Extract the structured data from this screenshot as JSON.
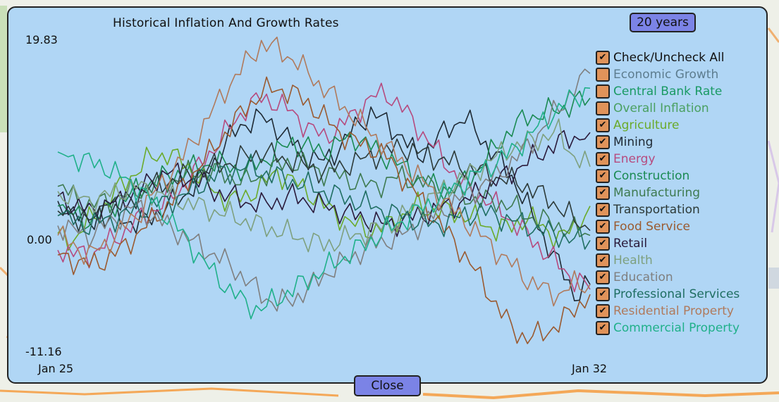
{
  "colors": {
    "panel": "#b0d6f5",
    "button": "#7b83e6",
    "checkbox": "#e0935a"
  },
  "buttons": {
    "range_label": "20 years",
    "close_label": "Close"
  },
  "legend": {
    "toggle_all": {
      "label": "Check/Uncheck All",
      "checked": true,
      "color": "#111111"
    },
    "items": [
      {
        "label": "Economic Growth",
        "checked": false,
        "color": "#5d7d8f"
      },
      {
        "label": "Central Bank Rate",
        "checked": false,
        "color": "#1a9a64"
      },
      {
        "label": "Overall Inflation",
        "checked": false,
        "color": "#4aa061"
      },
      {
        "label": "Agriculture",
        "checked": true,
        "color": "#6aaa2a"
      },
      {
        "label": "Mining",
        "checked": true,
        "color": "#1f2a34"
      },
      {
        "label": "Energy",
        "checked": true,
        "color": "#b64a7e"
      },
      {
        "label": "Construction",
        "checked": true,
        "color": "#1a8a52"
      },
      {
        "label": "Manufacturing",
        "checked": true,
        "color": "#3e7a50"
      },
      {
        "label": "Transportation",
        "checked": true,
        "color": "#2d3a38"
      },
      {
        "label": "Food Service",
        "checked": true,
        "color": "#9a5a30"
      },
      {
        "label": "Retail",
        "checked": true,
        "color": "#2a1a3a"
      },
      {
        "label": "Health",
        "checked": true,
        "color": "#7ea07e"
      },
      {
        "label": "Education",
        "checked": true,
        "color": "#7f7f7f"
      },
      {
        "label": "Professional Services",
        "checked": true,
        "color": "#1f6e62"
      },
      {
        "label": "Residential Property",
        "checked": true,
        "color": "#b07a5c"
      },
      {
        "label": "Commercial Property",
        "checked": true,
        "color": "#20b08a"
      }
    ]
  },
  "chart_data": {
    "type": "line",
    "title": "Historical Inflation And Growth Rates",
    "ylim": [
      -11.16,
      19.83
    ],
    "y_tick_labels": [
      "19.83",
      "0.00",
      "-11.16"
    ],
    "x_tick_labels": [
      "Jan 25",
      "Jan 32"
    ],
    "x_range": [
      "Jan 25",
      "Jan 32"
    ],
    "legend_position": "right",
    "grid": false,
    "series": [
      {
        "name": "Agriculture",
        "color": "#6aaa2a",
        "values": [
          0.2,
          -0.5,
          1.5,
          3.0,
          5.0,
          6.5,
          8.0,
          8.3,
          7.5,
          6.0,
          4.5,
          3.5,
          4.0,
          5.0,
          6.5,
          5.5,
          4.5,
          3.0,
          2.0,
          1.0,
          0.5,
          1.0,
          2.0,
          3.0,
          2.5,
          2.5,
          2.0,
          1.5,
          0.5,
          1.0,
          1.8,
          1.0,
          -0.5,
          1.0,
          3.0
        ]
      },
      {
        "name": "Mining",
        "color": "#1f2a34",
        "values": [
          3.5,
          2.5,
          1.0,
          3.5,
          2.0,
          1.0,
          2.0,
          3.0,
          4.0,
          5.5,
          7.5,
          10.0,
          11.5,
          12.0,
          11.0,
          9.5,
          8.0,
          7.5,
          9.0,
          11.0,
          12.5,
          11.5,
          10.0,
          8.0,
          9.5,
          11.0,
          12.0,
          10.0,
          8.0,
          6.0,
          3.0,
          0.0,
          -3.0,
          -6.0,
          -5.0
        ]
      },
      {
        "name": "Energy",
        "color": "#b64a7e",
        "values": [
          -1.5,
          -1.8,
          -2.0,
          -1.0,
          0.0,
          1.5,
          2.5,
          3.5,
          5.0,
          7.0,
          9.0,
          11.0,
          13.0,
          14.0,
          13.5,
          12.5,
          11.0,
          10.0,
          11.0,
          12.5,
          14.0,
          14.5,
          13.0,
          11.0,
          9.0,
          7.0,
          5.0,
          4.0,
          3.0,
          1.5,
          0.0,
          -1.5,
          -3.0,
          -4.5,
          -5.5
        ]
      },
      {
        "name": "Construction",
        "color": "#1a8a52",
        "values": [
          3.0,
          2.0,
          1.5,
          2.5,
          3.5,
          4.5,
          5.5,
          6.0,
          6.5,
          7.0,
          7.5,
          7.0,
          6.5,
          7.5,
          8.5,
          9.5,
          9.0,
          8.5,
          9.5,
          10.0,
          9.0,
          8.0,
          7.0,
          6.0,
          5.0,
          4.5,
          5.5,
          7.0,
          9.0,
          11.0,
          12.0,
          12.5,
          12.8,
          13.5,
          14.0
        ]
      },
      {
        "name": "Manufacturing",
        "color": "#3e7a50",
        "values": [
          5.0,
          4.0,
          3.0,
          3.5,
          4.0,
          4.5,
          5.0,
          5.5,
          6.0,
          6.5,
          6.5,
          6.0,
          5.5,
          6.0,
          7.0,
          7.5,
          7.0,
          6.5,
          6.0,
          5.5,
          5.0,
          5.5,
          6.0,
          5.5,
          5.0,
          4.5,
          4.0,
          3.5,
          3.5,
          3.0,
          2.0,
          1.5,
          1.0,
          0.5,
          0.0
        ]
      },
      {
        "name": "Transportation",
        "color": "#2d3a38",
        "values": [
          2.5,
          2.0,
          1.5,
          2.0,
          3.0,
          4.0,
          5.0,
          5.5,
          6.0,
          6.5,
          7.0,
          7.5,
          8.0,
          8.5,
          8.0,
          7.5,
          7.0,
          6.5,
          7.0,
          7.5,
          8.0,
          8.5,
          9.0,
          8.5,
          8.0,
          7.5,
          7.0,
          6.5,
          6.0,
          5.5,
          5.0,
          4.0,
          3.0,
          1.5,
          0.5
        ]
      },
      {
        "name": "Food Service",
        "color": "#9a5a30",
        "values": [
          -2.0,
          -2.5,
          -3.0,
          -2.5,
          -1.5,
          0.0,
          1.5,
          3.0,
          5.0,
          7.0,
          9.0,
          11.0,
          13.0,
          14.5,
          15.0,
          14.5,
          13.5,
          12.0,
          10.5,
          9.5,
          9.0,
          8.0,
          6.0,
          4.0,
          2.0,
          0.0,
          -2.0,
          -4.5,
          -7.0,
          -9.5,
          -10.5,
          -10.0,
          -9.0,
          -7.5,
          -6.0
        ]
      },
      {
        "name": "Retail",
        "color": "#2a1a3a",
        "values": [
          4.0,
          3.0,
          2.5,
          3.0,
          3.5,
          4.5,
          5.5,
          6.5,
          6.0,
          5.5,
          4.5,
          4.0,
          3.5,
          3.0,
          3.5,
          4.0,
          3.5,
          3.0,
          2.5,
          2.0,
          1.5,
          1.0,
          1.5,
          2.0,
          2.5,
          3.0,
          3.5,
          4.5,
          5.5,
          6.5,
          7.5,
          8.5,
          9.5,
          10.0,
          10.5
        ]
      },
      {
        "name": "Health",
        "color": "#7ea07e",
        "values": [
          4.5,
          4.0,
          3.5,
          4.0,
          4.5,
          5.0,
          4.5,
          4.0,
          3.5,
          3.0,
          2.5,
          2.0,
          1.5,
          1.0,
          0.5,
          0.0,
          -0.5,
          -1.0,
          -0.5,
          0.0,
          0.5,
          1.0,
          2.0,
          3.0,
          4.0,
          5.0,
          6.0,
          7.0,
          8.0,
          9.0,
          9.5,
          10.0,
          10.5,
          8.0,
          7.0
        ]
      },
      {
        "name": "Education",
        "color": "#7f7f7f",
        "values": [
          1.0,
          0.5,
          0.0,
          1.0,
          2.0,
          3.0,
          2.0,
          1.0,
          0.0,
          -1.0,
          -2.0,
          -3.0,
          -4.5,
          -6.0,
          -7.0,
          -6.5,
          -5.5,
          -4.0,
          -3.0,
          -2.0,
          -1.0,
          -0.5,
          0.0,
          1.0,
          2.0,
          3.0,
          4.0,
          5.0,
          6.0,
          7.5,
          9.0,
          11.0,
          13.0,
          15.0,
          16.5
        ]
      },
      {
        "name": "Professional Services",
        "color": "#1f6e62",
        "values": [
          2.0,
          1.5,
          1.0,
          1.5,
          2.0,
          2.5,
          3.0,
          3.5,
          4.0,
          5.0,
          6.0,
          6.5,
          7.0,
          6.5,
          6.0,
          5.5,
          5.0,
          4.5,
          4.0,
          3.5,
          3.0,
          2.5,
          2.0,
          1.5,
          1.0,
          1.5,
          2.0,
          2.5,
          2.0,
          1.5,
          1.0,
          0.5,
          0.0,
          -0.5,
          -0.5
        ]
      },
      {
        "name": "Residential Property",
        "color": "#b07a5c",
        "values": [
          0.0,
          -1.0,
          -2.0,
          -1.0,
          0.5,
          2.0,
          4.0,
          6.0,
          8.0,
          10.5,
          13.0,
          15.5,
          17.5,
          19.5,
          19.0,
          18.0,
          16.5,
          15.0,
          13.5,
          12.0,
          10.5,
          9.0,
          7.5,
          6.0,
          4.5,
          3.0,
          1.5,
          0.0,
          -1.5,
          -3.0,
          -4.5,
          -5.5,
          -6.0,
          -5.0,
          -5.0
        ]
      },
      {
        "name": "Commercial Property",
        "color": "#20b08a",
        "values": [
          8.5,
          8.0,
          7.5,
          7.0,
          6.0,
          5.0,
          3.5,
          2.0,
          0.0,
          -2.0,
          -4.0,
          -5.5,
          -7.0,
          -7.5,
          -6.5,
          -5.5,
          -4.5,
          -3.5,
          -2.5,
          -1.5,
          -0.5,
          0.5,
          1.5,
          2.5,
          3.5,
          4.5,
          5.5,
          6.5,
          7.5,
          8.5,
          10.0,
          11.5,
          13.0,
          14.0,
          15.0
        ]
      }
    ]
  }
}
